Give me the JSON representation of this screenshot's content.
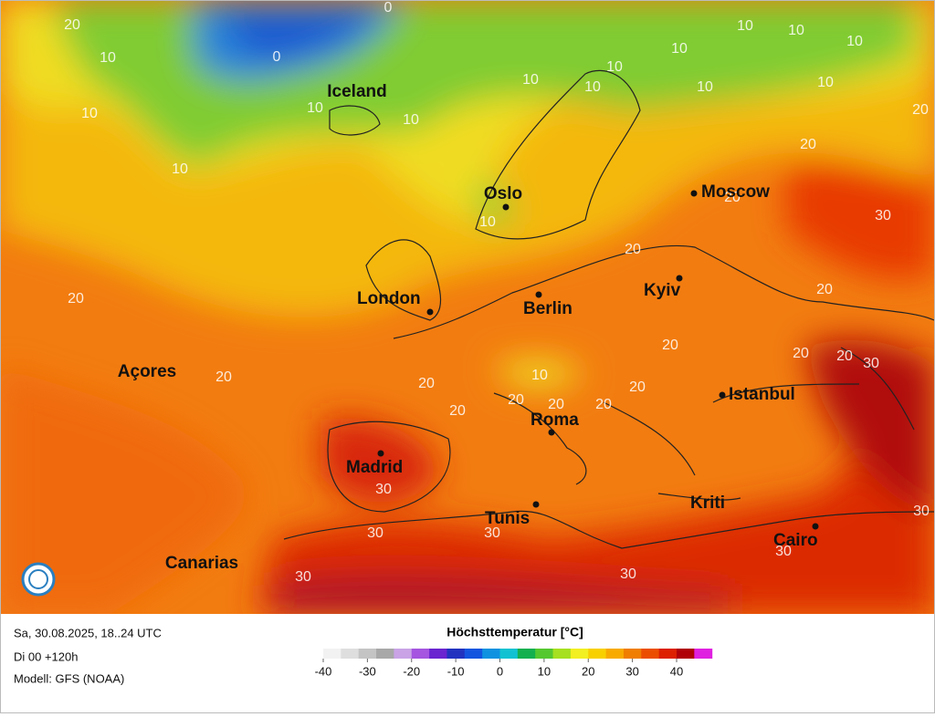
{
  "map": {
    "cities": [
      "Iceland",
      "Oslo",
      "Moscow",
      "London",
      "Berlin",
      "Kyiv",
      "Açores",
      "Istanbul",
      "Madrid",
      "Roma",
      "Kriti",
      "Tunis",
      "Cairo",
      "Canarias"
    ],
    "isolines": [
      20,
      10,
      10,
      0,
      0,
      10,
      10,
      10,
      10,
      10,
      10,
      10,
      10,
      10,
      10,
      10,
      10,
      20,
      20,
      20,
      30,
      10,
      20,
      20,
      20,
      20,
      20,
      20,
      30,
      20,
      20,
      10,
      20,
      20,
      20,
      20,
      20,
      30,
      30,
      30,
      30,
      30,
      30,
      30
    ]
  },
  "footer": {
    "date": "Sa, 30.08.2025, 18..24 UTC",
    "run": "Di 00 +120h",
    "model": "Modell: GFS (NOAA)"
  },
  "legend": {
    "title": "Höchsttemperatur [°C]",
    "lim": [
      -40,
      48
    ],
    "ticks": [
      -40,
      -30,
      -20,
      -10,
      0,
      10,
      20,
      30,
      40
    ],
    "colors": [
      "#f2f2f2",
      "#dedede",
      "#c4c4c4",
      "#a8a8a8",
      "#c9a3e6",
      "#a555e0",
      "#6a24d0",
      "#2233c0",
      "#1455e0",
      "#1092e0",
      "#12c2d2",
      "#14b050",
      "#55c830",
      "#a6e020",
      "#f2ef22",
      "#f8d000",
      "#f8aa00",
      "#f07e00",
      "#ec4e00",
      "#dc2000",
      "#b00008",
      "#e020e0"
    ]
  }
}
